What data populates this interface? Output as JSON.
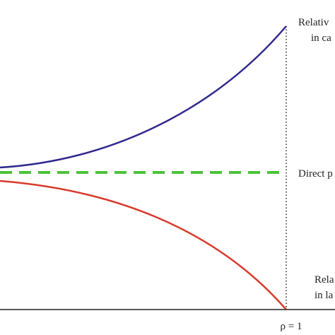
{
  "labels": {
    "upper": [
      "Relativ",
      "in ca"
    ],
    "middle": "Direct p",
    "lower": [
      "Rela",
      "in la"
    ],
    "x_marker": "ρ = 1"
  }
}
